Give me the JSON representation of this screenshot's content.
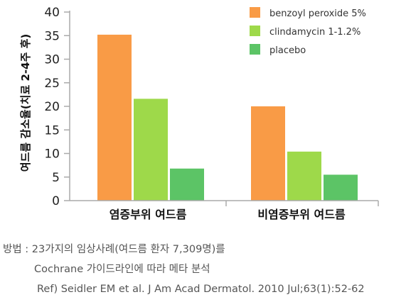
{
  "chart_data": {
    "type": "bar",
    "ylabel": "여드름 감소율(치료 2-4주 후)",
    "xlabel": "",
    "ylim": [
      0,
      40
    ],
    "yticks": [
      0,
      5,
      10,
      15,
      20,
      25,
      30,
      35,
      40
    ],
    "grid": false,
    "legend_position": "top-right",
    "categories": [
      "염증부위 여드름",
      "비염증부위 여드름"
    ],
    "series": [
      {
        "name": "benzoyl peroxide 5%",
        "color": "#F99B46",
        "values": [
          35.2,
          20.0
        ]
      },
      {
        "name": "clindamycin 1-1.2%",
        "color": "#9ED94A",
        "values": [
          21.6,
          10.4
        ]
      },
      {
        "name": "placebo",
        "color": "#5CC466",
        "values": [
          6.8,
          5.5
        ]
      }
    ]
  },
  "note": {
    "line1": "방법 : 23가지의 임상사례(여드름 환자 7,309명)를",
    "line2": "Cochrane 가이드라인에 따라 메타 분석",
    "line3": "Ref) Seidler EM et al. J Am Acad Dermatol. 2010 Jul;63(1):52-62"
  }
}
